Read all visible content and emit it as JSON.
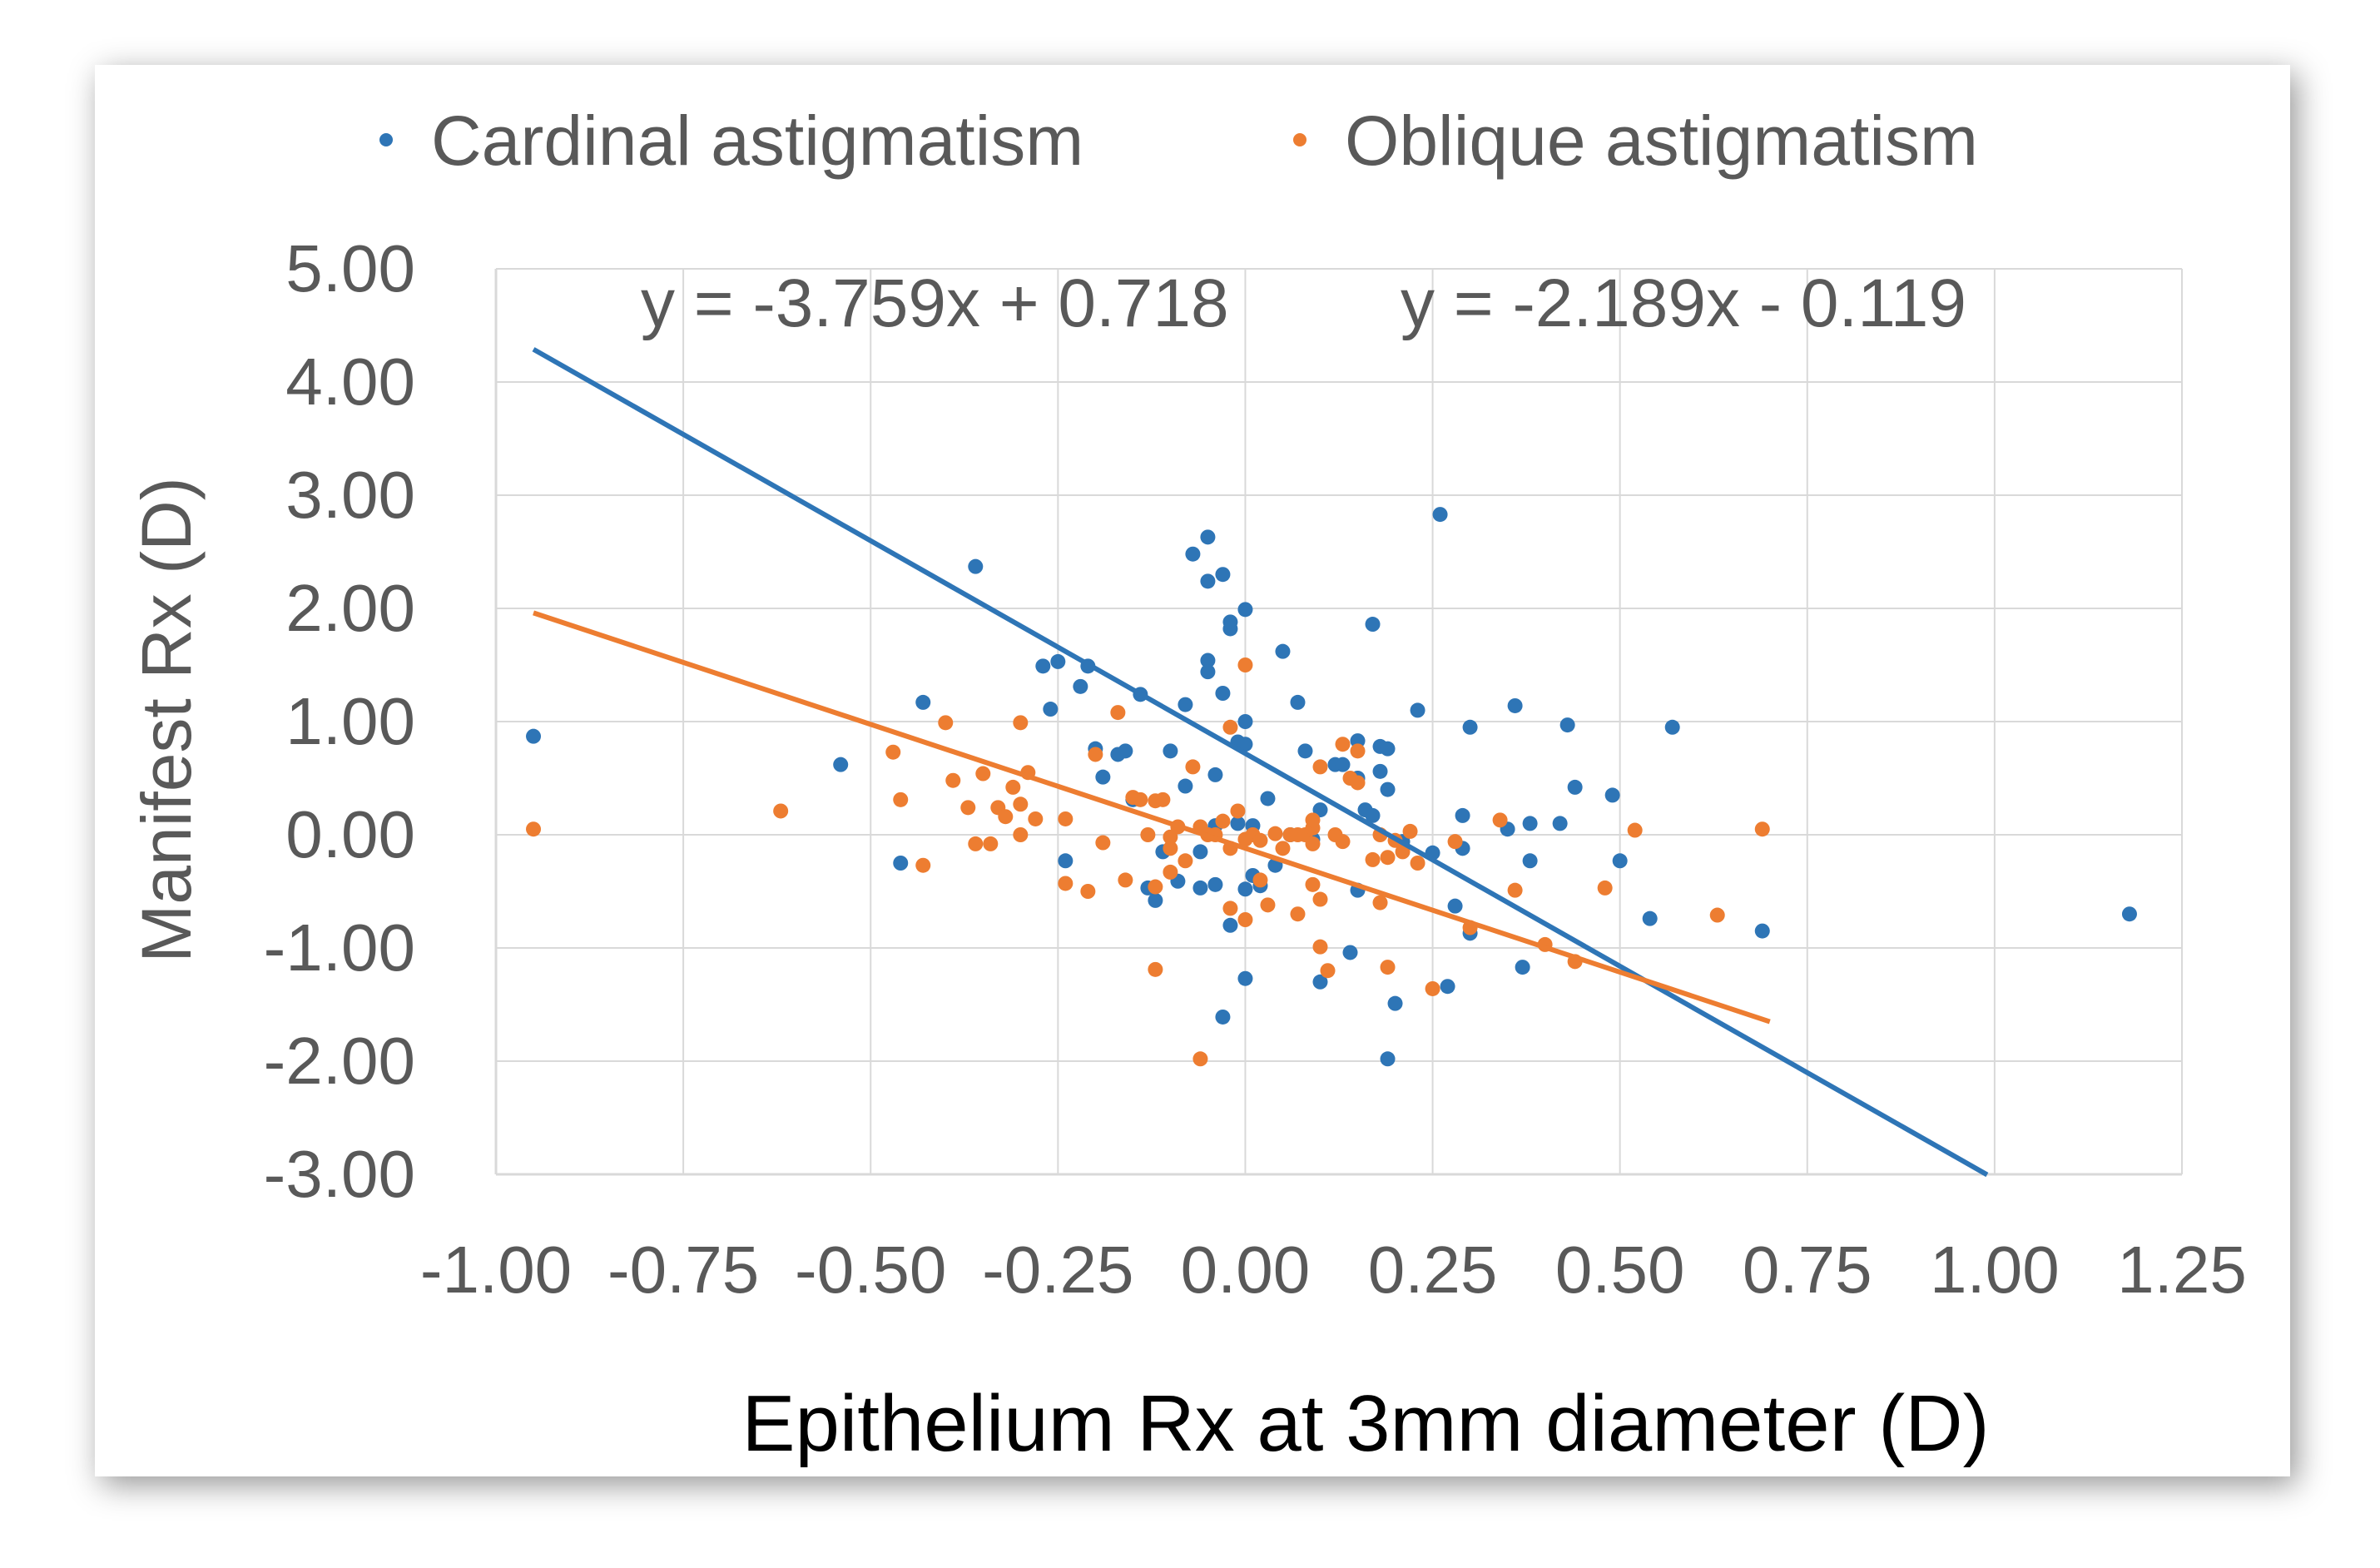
{
  "chart_data": {
    "type": "scatter",
    "xlabel": "Epithelium Rx at 3mm diameter (D)",
    "ylabel": "Manifest Rx (D)",
    "xlim": [
      -1.0,
      1.25
    ],
    "ylim": [
      -3.0,
      5.0
    ],
    "x_ticks": [
      "-1.00",
      "-0.75",
      "-0.50",
      "-0.25",
      "0.00",
      "0.25",
      "0.50",
      "0.75",
      "1.00",
      "1.25"
    ],
    "y_ticks": [
      "5.00",
      "4.00",
      "3.00",
      "2.00",
      "1.00",
      "0.00",
      "-1.00",
      "-2.00",
      "-3.00"
    ],
    "grid": true,
    "legend_position": "top",
    "series": [
      {
        "name": "Cardinal astigmatism",
        "color": "#2E75B6",
        "trendline": {
          "label": "y = -3.759x + 0.718",
          "slope": -3.759,
          "intercept": 0.718,
          "x_range": [
            -0.95,
            0.99
          ]
        },
        "points": [
          [
            -0.95,
            0.87
          ],
          [
            -0.54,
            0.62
          ],
          [
            -0.46,
            -0.25
          ],
          [
            -0.43,
            1.17
          ],
          [
            -0.36,
            2.37
          ],
          [
            -0.27,
            1.49
          ],
          [
            -0.26,
            1.11
          ],
          [
            -0.25,
            1.53
          ],
          [
            -0.24,
            -0.23
          ],
          [
            -0.22,
            1.31
          ],
          [
            -0.21,
            1.49
          ],
          [
            -0.2,
            0.76
          ],
          [
            -0.19,
            0.51
          ],
          [
            -0.17,
            0.71
          ],
          [
            -0.16,
            0.74
          ],
          [
            -0.15,
            0.31
          ],
          [
            -0.14,
            1.24
          ],
          [
            -0.13,
            -0.47
          ],
          [
            -0.12,
            -0.58
          ],
          [
            -0.11,
            -0.15
          ],
          [
            -0.1,
            0.74
          ],
          [
            -0.09,
            -0.41
          ],
          [
            -0.08,
            0.43
          ],
          [
            -0.08,
            1.15
          ],
          [
            -0.07,
            2.48
          ],
          [
            -0.06,
            -0.47
          ],
          [
            -0.06,
            -0.15
          ],
          [
            -0.05,
            2.63
          ],
          [
            -0.05,
            2.24
          ],
          [
            -0.05,
            1.54
          ],
          [
            -0.05,
            1.44
          ],
          [
            -0.04,
            0.53
          ],
          [
            -0.04,
            0.08
          ],
          [
            -0.04,
            -0.44
          ],
          [
            -0.03,
            2.3
          ],
          [
            -0.03,
            1.25
          ],
          [
            -0.03,
            -1.61
          ],
          [
            -0.02,
            1.82
          ],
          [
            -0.02,
            1.88
          ],
          [
            -0.02,
            -0.8
          ],
          [
            -0.01,
            0.82
          ],
          [
            -0.01,
            0.1
          ],
          [
            0.0,
            -0.48
          ],
          [
            0.0,
            1.0
          ],
          [
            0.0,
            1.99
          ],
          [
            0.0,
            0.8
          ],
          [
            0.0,
            -1.27
          ],
          [
            0.01,
            0.08
          ],
          [
            0.01,
            -0.36
          ],
          [
            0.02,
            -0.45
          ],
          [
            0.03,
            0.32
          ],
          [
            0.04,
            -0.27
          ],
          [
            0.05,
            1.62
          ],
          [
            0.06,
            0.0
          ],
          [
            0.07,
            1.17
          ],
          [
            0.08,
            0.74
          ],
          [
            0.09,
            -0.04
          ],
          [
            0.1,
            0.22
          ],
          [
            0.1,
            -1.3
          ],
          [
            0.12,
            0.62
          ],
          [
            0.13,
            0.62
          ],
          [
            0.14,
            -1.04
          ],
          [
            0.15,
            0.83
          ],
          [
            0.15,
            0.5
          ],
          [
            0.15,
            -0.49
          ],
          [
            0.16,
            0.22
          ],
          [
            0.17,
            1.86
          ],
          [
            0.17,
            0.17
          ],
          [
            0.18,
            0.78
          ],
          [
            0.18,
            0.56
          ],
          [
            0.19,
            0.76
          ],
          [
            0.19,
            0.4
          ],
          [
            0.19,
            -1.98
          ],
          [
            0.2,
            -1.49
          ],
          [
            0.21,
            -0.06
          ],
          [
            0.23,
            1.1
          ],
          [
            0.25,
            -0.16
          ],
          [
            0.26,
            2.83
          ],
          [
            0.27,
            -1.34
          ],
          [
            0.28,
            -0.63
          ],
          [
            0.29,
            -0.12
          ],
          [
            0.29,
            0.17
          ],
          [
            0.3,
            -0.87
          ],
          [
            0.3,
            0.95
          ],
          [
            0.35,
            0.05
          ],
          [
            0.36,
            1.14
          ],
          [
            0.37,
            -1.17
          ],
          [
            0.38,
            0.1
          ],
          [
            0.38,
            -0.23
          ],
          [
            0.42,
            0.1
          ],
          [
            0.43,
            0.97
          ],
          [
            0.44,
            0.42
          ],
          [
            0.49,
            0.35
          ],
          [
            0.5,
            -0.23
          ],
          [
            0.54,
            -0.74
          ],
          [
            0.57,
            0.95
          ],
          [
            0.69,
            -0.85
          ],
          [
            1.18,
            -0.7
          ]
        ]
      },
      {
        "name": "Oblique astigmatism",
        "color": "#ED7D31",
        "trendline": {
          "label": "y = -2.189x - 0.119",
          "slope": -2.189,
          "intercept": -0.119,
          "x_range": [
            -0.95,
            0.7
          ]
        },
        "points": [
          [
            -0.95,
            0.05
          ],
          [
            -0.62,
            0.21
          ],
          [
            -0.47,
            0.73
          ],
          [
            -0.46,
            0.31
          ],
          [
            -0.43,
            -0.27
          ],
          [
            -0.4,
            0.99
          ],
          [
            -0.39,
            0.48
          ],
          [
            -0.37,
            0.24
          ],
          [
            -0.36,
            -0.08
          ],
          [
            -0.35,
            0.54
          ],
          [
            -0.34,
            -0.08
          ],
          [
            -0.33,
            0.24
          ],
          [
            -0.32,
            0.16
          ],
          [
            -0.31,
            0.42
          ],
          [
            -0.3,
            0.99
          ],
          [
            -0.3,
            0.27
          ],
          [
            -0.3,
            0.0
          ],
          [
            -0.29,
            0.55
          ],
          [
            -0.28,
            0.14
          ],
          [
            -0.24,
            0.14
          ],
          [
            -0.24,
            -0.43
          ],
          [
            -0.21,
            -0.5
          ],
          [
            -0.2,
            0.71
          ],
          [
            -0.19,
            -0.07
          ],
          [
            -0.17,
            1.08
          ],
          [
            -0.16,
            -0.4
          ],
          [
            -0.15,
            0.33
          ],
          [
            -0.14,
            0.31
          ],
          [
            -0.13,
            0.0
          ],
          [
            -0.12,
            0.3
          ],
          [
            -0.12,
            -0.46
          ],
          [
            -0.12,
            -1.19
          ],
          [
            -0.11,
            0.31
          ],
          [
            -0.1,
            -0.12
          ],
          [
            -0.1,
            -0.02
          ],
          [
            -0.1,
            -0.33
          ],
          [
            -0.09,
            0.07
          ],
          [
            -0.08,
            -0.23
          ],
          [
            -0.07,
            0.6
          ],
          [
            -0.06,
            -1.98
          ],
          [
            -0.06,
            0.07
          ],
          [
            -0.05,
            0.0
          ],
          [
            -0.04,
            0.0
          ],
          [
            -0.03,
            0.12
          ],
          [
            -0.02,
            -0.12
          ],
          [
            -0.02,
            0.95
          ],
          [
            -0.02,
            -0.65
          ],
          [
            -0.01,
            0.21
          ],
          [
            0.0,
            -0.04
          ],
          [
            0.0,
            1.5
          ],
          [
            0.0,
            -0.75
          ],
          [
            0.01,
            0.0
          ],
          [
            0.02,
            -0.05
          ],
          [
            0.02,
            -0.4
          ],
          [
            0.03,
            -0.62
          ],
          [
            0.04,
            0.01
          ],
          [
            0.05,
            -0.12
          ],
          [
            0.06,
            0.0
          ],
          [
            0.07,
            -0.7
          ],
          [
            0.07,
            0.0
          ],
          [
            0.08,
            0.0
          ],
          [
            0.09,
            -0.08
          ],
          [
            0.09,
            0.06
          ],
          [
            0.09,
            0.13
          ],
          [
            0.09,
            -0.44
          ],
          [
            0.1,
            0.6
          ],
          [
            0.1,
            -0.57
          ],
          [
            0.1,
            -0.99
          ],
          [
            0.11,
            -1.2
          ],
          [
            0.12,
            0.0
          ],
          [
            0.13,
            -0.06
          ],
          [
            0.13,
            0.8
          ],
          [
            0.14,
            0.5
          ],
          [
            0.15,
            0.46
          ],
          [
            0.15,
            0.74
          ],
          [
            0.17,
            -0.22
          ],
          [
            0.18,
            0.0
          ],
          [
            0.18,
            -0.6
          ],
          [
            0.19,
            -0.2
          ],
          [
            0.19,
            -1.17
          ],
          [
            0.2,
            -0.05
          ],
          [
            0.21,
            -0.15
          ],
          [
            0.22,
            0.03
          ],
          [
            0.23,
            -0.25
          ],
          [
            0.25,
            -1.36
          ],
          [
            0.28,
            -0.06
          ],
          [
            0.3,
            -0.82
          ],
          [
            0.34,
            0.13
          ],
          [
            0.36,
            -0.49
          ],
          [
            0.4,
            -0.97
          ],
          [
            0.44,
            -1.12
          ],
          [
            0.48,
            -0.47
          ],
          [
            0.52,
            0.04
          ],
          [
            0.63,
            -0.71
          ],
          [
            0.69,
            0.05
          ]
        ]
      }
    ]
  }
}
